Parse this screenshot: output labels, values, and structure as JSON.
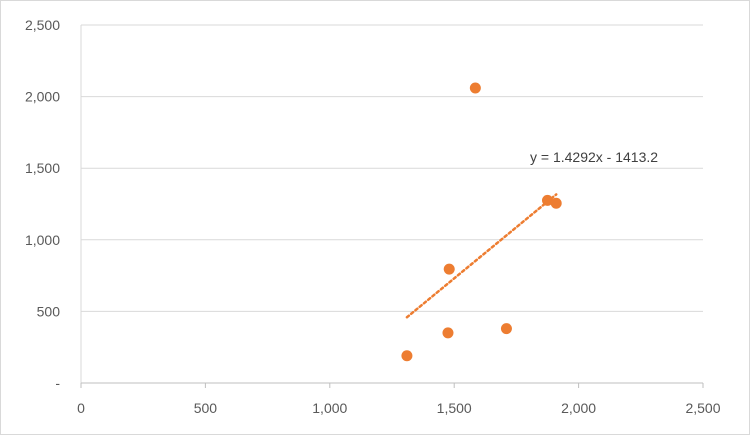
{
  "chart_data": {
    "type": "scatter",
    "title": "",
    "xlabel": "",
    "ylabel": "",
    "xlim": [
      0,
      2500
    ],
    "ylim": [
      0,
      2500
    ],
    "x_ticks": [
      0,
      500,
      1000,
      1500,
      2000,
      2500
    ],
    "x_tick_labels": [
      "0",
      "500",
      "1,000",
      "1,500",
      "2,000",
      "2,500"
    ],
    "y_ticks": [
      0,
      500,
      1000,
      1500,
      2000,
      2500
    ],
    "y_tick_labels": [
      "-",
      "500",
      "1,000",
      "1,500",
      "2,000",
      "2,500"
    ],
    "grid": {
      "horizontal": true,
      "vertical": false
    },
    "legend": "none",
    "series": [
      {
        "points": [
          {
            "x": 1310,
            "y": 190
          },
          {
            "x": 1475,
            "y": 350
          },
          {
            "x": 1480,
            "y": 795
          },
          {
            "x": 1585,
            "y": 2060
          },
          {
            "x": 1710,
            "y": 380
          },
          {
            "x": 1875,
            "y": 1275
          },
          {
            "x": 1910,
            "y": 1255
          }
        ],
        "color": "#ed7d31"
      }
    ],
    "trendline": {
      "type": "linear",
      "slope": 1.4292,
      "intercept": -1413.2,
      "x_range": [
        1310,
        1910
      ],
      "equation_label": "y = 1.4292x - 1413.2",
      "color": "#ed7d31",
      "style": "dotted"
    }
  }
}
